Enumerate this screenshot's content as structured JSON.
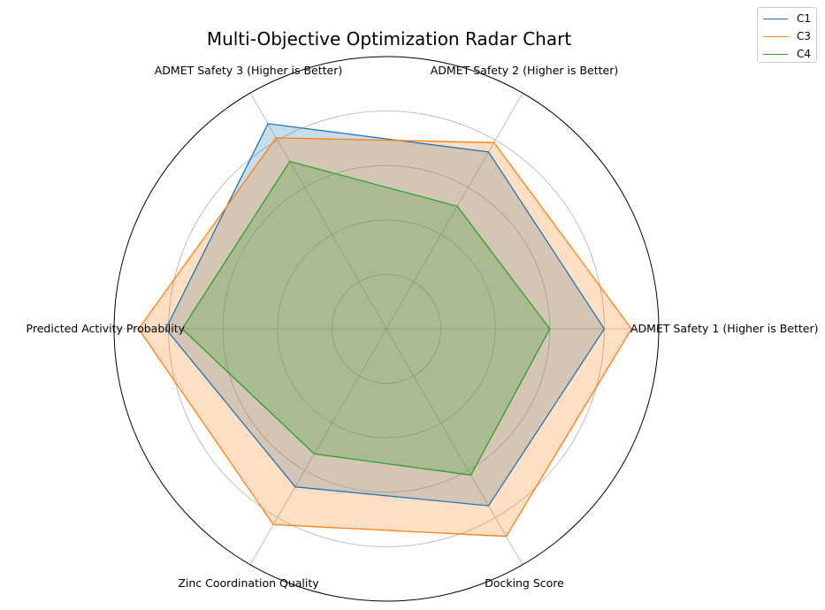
{
  "chart_data": {
    "type": "radar",
    "title": "Multi-Objective Optimization Radar Chart",
    "categories": [
      "ADMET Safety 1 (Higher is Better)",
      "ADMET Safety 2 (Higher is Better)",
      "ADMET Safety 3 (Higher is Better)",
      "Predicted Activity Probability",
      "Zinc Coordination Quality",
      "Docking Score"
    ],
    "rlim": [
      0,
      1
    ],
    "radial_grid": [
      0.2,
      0.4,
      0.6,
      0.8
    ],
    "grid": true,
    "legend_position": "top-right",
    "series": [
      {
        "name": "C1",
        "color": "#1f77b4",
        "values": [
          0.8,
          0.75,
          0.87,
          0.81,
          0.67,
          0.75
        ]
      },
      {
        "name": "C3",
        "color": "#ff7f0e",
        "values": [
          0.9,
          0.79,
          0.81,
          0.91,
          0.83,
          0.88
        ]
      },
      {
        "name": "C4",
        "color": "#2ca02c",
        "values": [
          0.6,
          0.52,
          0.71,
          0.75,
          0.53,
          0.62
        ]
      }
    ]
  }
}
